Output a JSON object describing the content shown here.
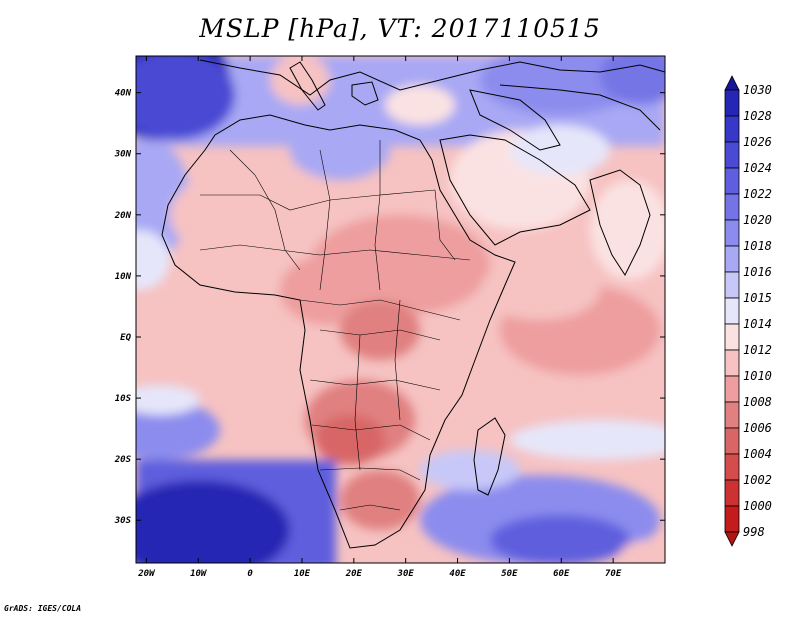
{
  "title": "MSLP [hPa], VT: 2017110515",
  "footer": "GrADS: IGES/COLA",
  "map": {
    "lon_range": [
      -22,
      80
    ],
    "lat_range": [
      -37,
      46
    ],
    "lon_ticks": [
      {
        "value": -20,
        "label": "20W"
      },
      {
        "value": -10,
        "label": "10W"
      },
      {
        "value": 0,
        "label": "0"
      },
      {
        "value": 10,
        "label": "10E"
      },
      {
        "value": 20,
        "label": "20E"
      },
      {
        "value": 30,
        "label": "30E"
      },
      {
        "value": 40,
        "label": "40E"
      },
      {
        "value": 50,
        "label": "50E"
      },
      {
        "value": 60,
        "label": "60E"
      },
      {
        "value": 70,
        "label": "70E"
      }
    ],
    "lat_ticks": [
      {
        "value": 40,
        "label": "40N"
      },
      {
        "value": 30,
        "label": "30N"
      },
      {
        "value": 20,
        "label": "20N"
      },
      {
        "value": 10,
        "label": "10N"
      },
      {
        "value": 0,
        "label": "EQ"
      },
      {
        "value": -10,
        "label": "10S"
      },
      {
        "value": -20,
        "label": "20S"
      },
      {
        "value": -30,
        "label": "30S"
      }
    ]
  },
  "colorbar": {
    "levels": [
      "1030",
      "1028",
      "1026",
      "1024",
      "1022",
      "1020",
      "1018",
      "1016",
      "1015",
      "1014",
      "1012",
      "1010",
      "1008",
      "1006",
      "1004",
      "1002",
      "1000",
      "998"
    ],
    "colors": [
      "#16169a",
      "#2626b4",
      "#3737c8",
      "#4a4ad4",
      "#5e5ede",
      "#7474e6",
      "#8c8cee",
      "#a8a8f4",
      "#c8c8f8",
      "#e6e6fa",
      "#fbe2e2",
      "#f6c2c2",
      "#ee9e9e",
      "#e08080",
      "#d86666",
      "#d44c4c",
      "#cc3232",
      "#c41c1c",
      "#b31414"
    ]
  }
}
